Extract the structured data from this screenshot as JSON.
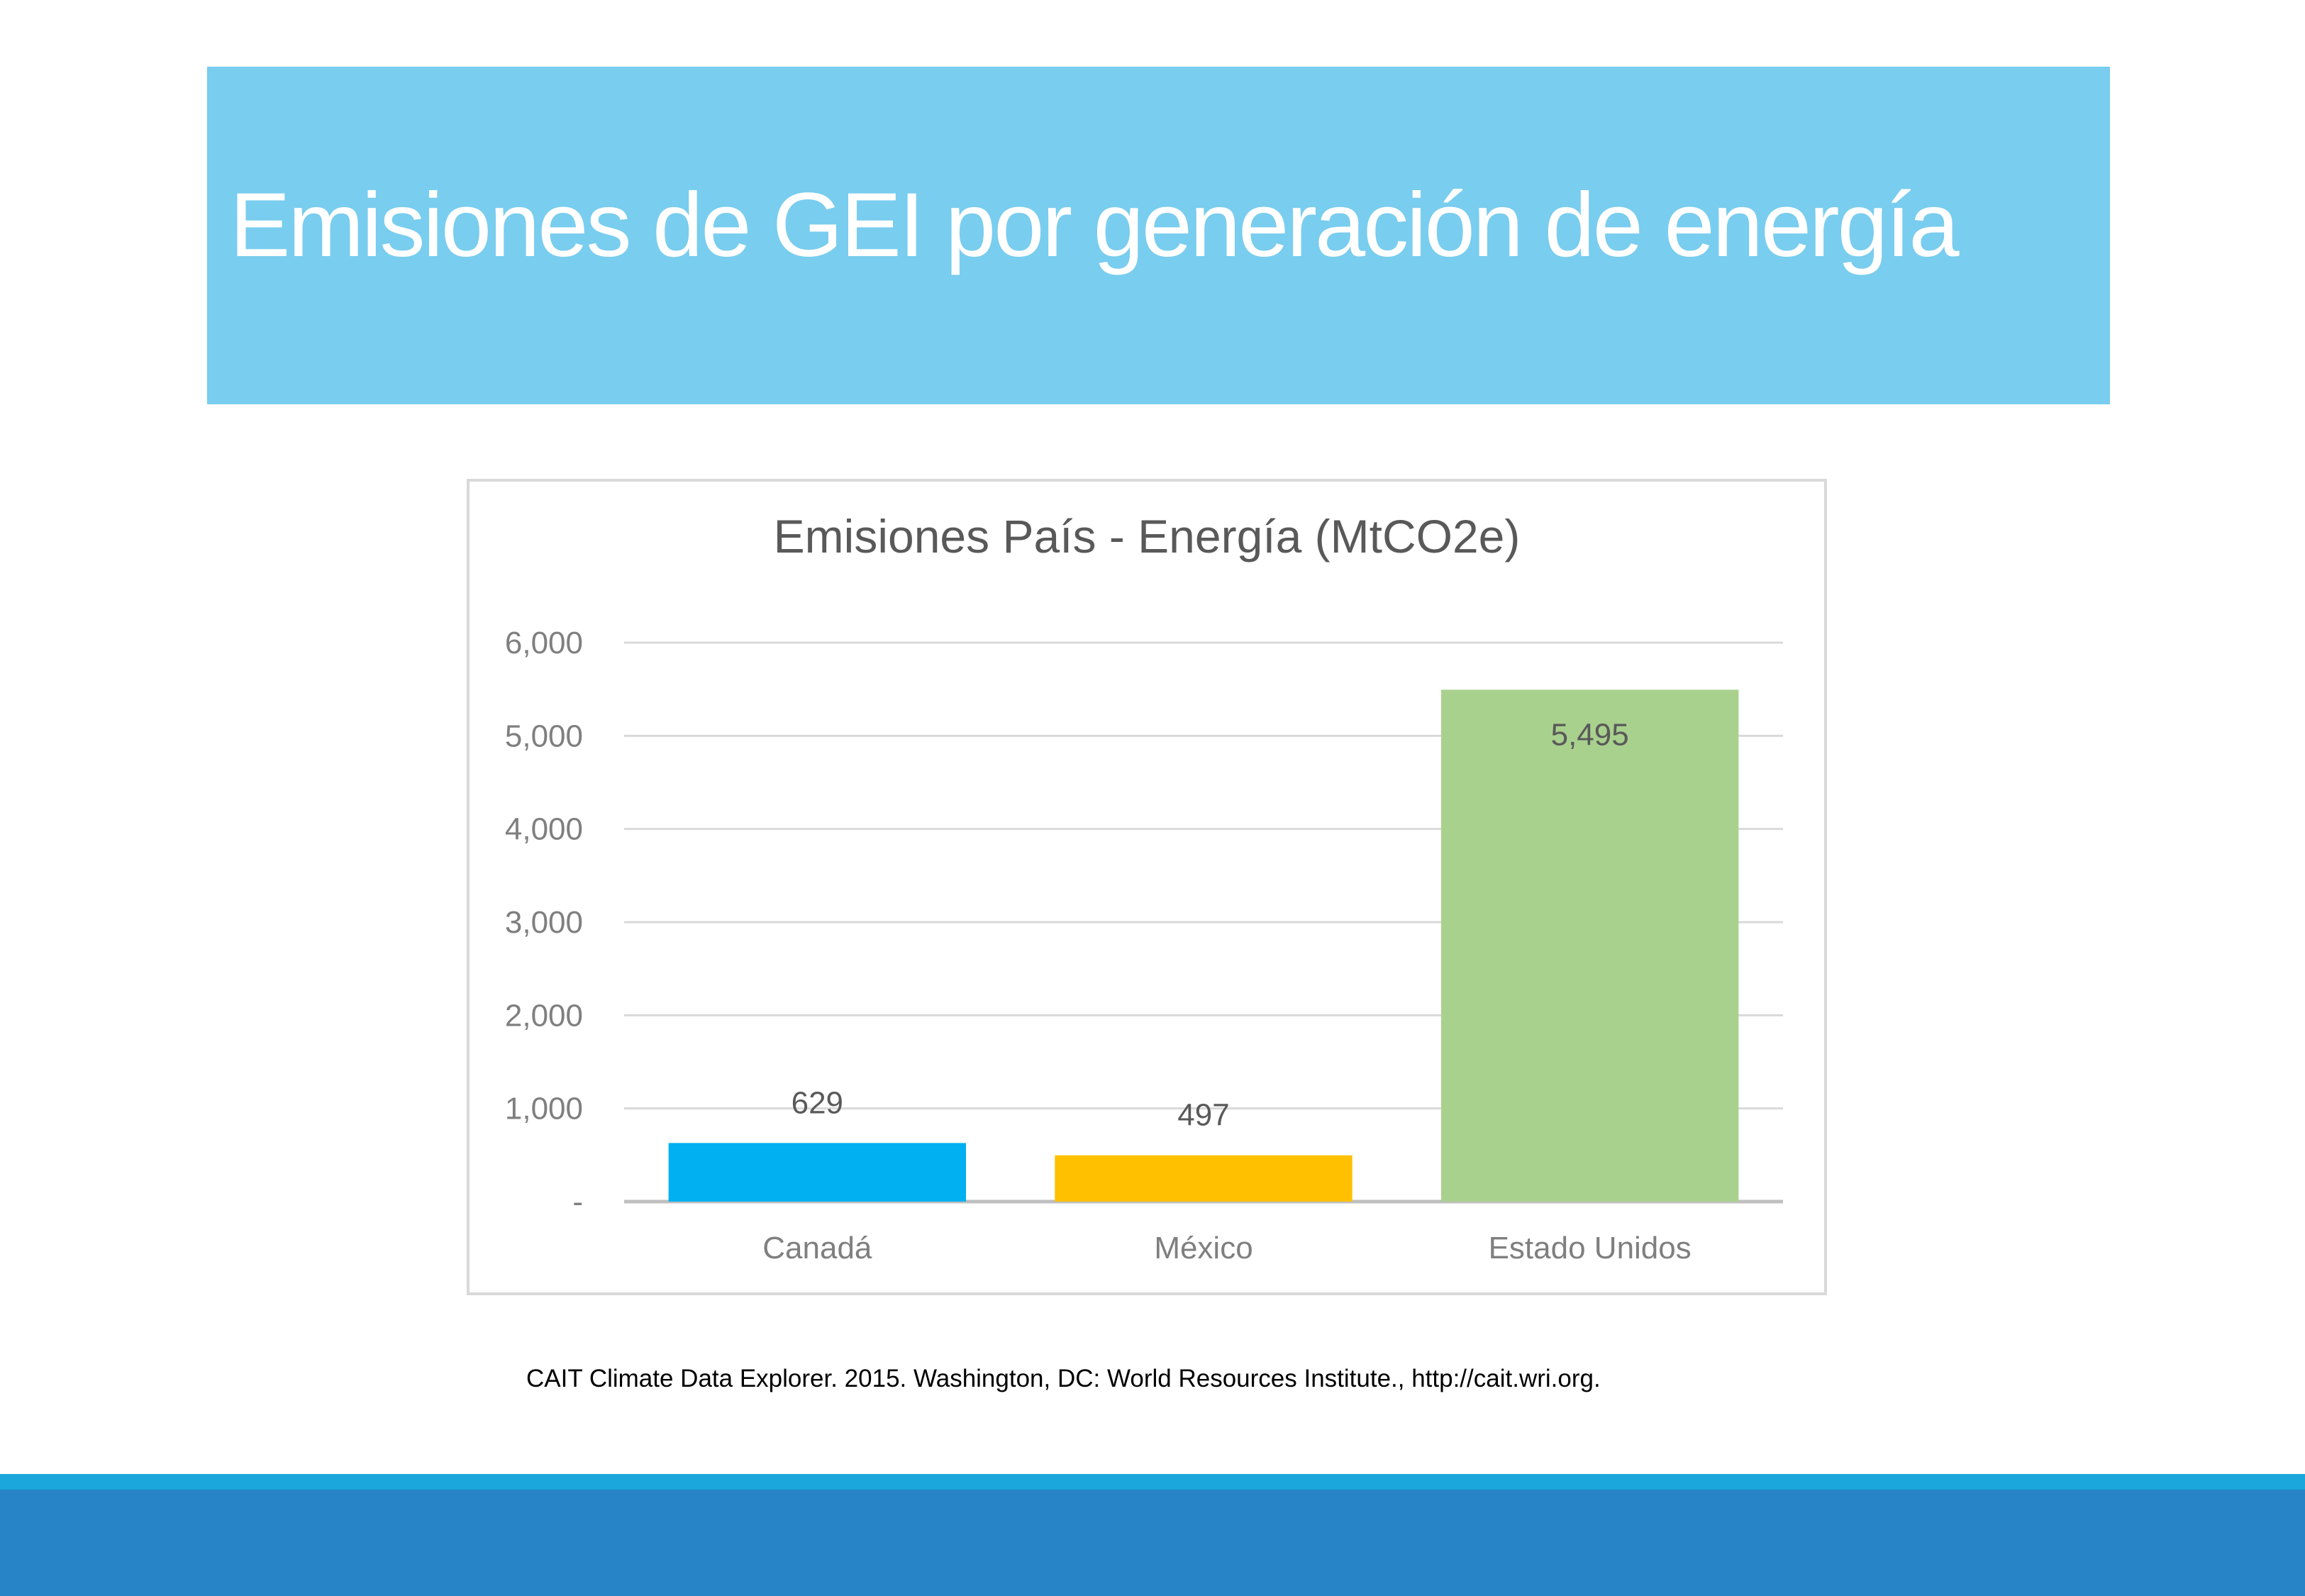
{
  "slide": {
    "title": "Emisiones de GEI por generación de energía",
    "source": "CAIT Climate Data Explorer. 2015. Washington, DC: World Resources Institute., http://cait.wri.org."
  },
  "colors": {
    "banner": "#79cdee",
    "footer_stripe": "#1ba7dc",
    "footer_bar": "#2784c6"
  },
  "chart_data": {
    "type": "bar",
    "title": "Emisiones País - Energía (MtCO2e)",
    "xlabel": "",
    "ylabel": "",
    "categories": [
      "Canadá",
      "México",
      "Estado Unidos"
    ],
    "values": [
      629,
      497,
      5495
    ],
    "value_labels": [
      "629",
      "497",
      "5,495"
    ],
    "colors": [
      "#00b0f0",
      "#ffc000",
      "#a9d18e"
    ],
    "ylim": [
      0,
      6000
    ],
    "yticks": [
      0,
      1000,
      2000,
      3000,
      4000,
      5000,
      6000
    ],
    "ytick_labels": [
      "-",
      "1,000",
      "2,000",
      "3,000",
      "4,000",
      "5,000",
      "6,000"
    ],
    "grid": true,
    "legend": "none"
  }
}
